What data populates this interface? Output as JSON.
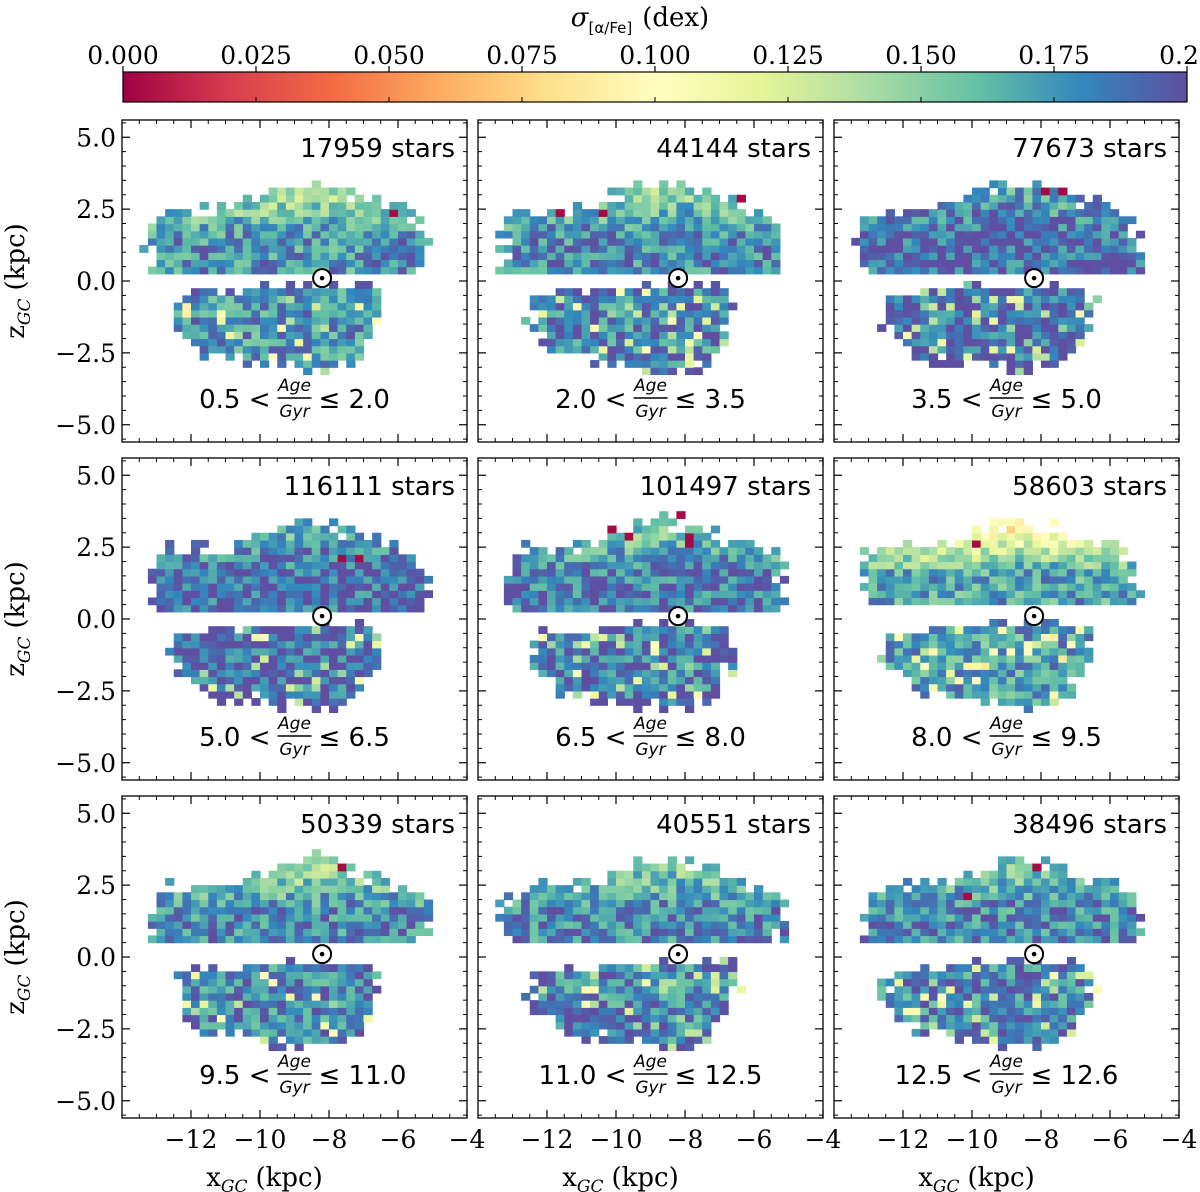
{
  "chart_data": {
    "type": "heatmap",
    "title": "",
    "colorbar": {
      "label_main": "σ",
      "label_sub": "[α/Fe]",
      "label_unit": "(dex)",
      "ticks": [
        "0.000",
        "0.025",
        "0.050",
        "0.075",
        "0.100",
        "0.125",
        "0.150",
        "0.175",
        "0.20"
      ],
      "range": [
        0.0,
        0.2
      ],
      "cmap": "Spectral",
      "placement": "top"
    },
    "x_axis": {
      "label_main": "x",
      "label_sub": "GC",
      "label_unit": "(kpc)",
      "range": [
        -14.0,
        -4.0
      ],
      "major_ticks": [
        -12,
        -10,
        -8,
        -6,
        -4
      ],
      "tick_labels": [
        "−12",
        "−10",
        "−8",
        "−6",
        "−4"
      ]
    },
    "y_axis": {
      "label_main": "z",
      "label_sub": "GC",
      "label_unit": "(kpc)",
      "range": [
        -5.6,
        5.6
      ],
      "major_ticks": [
        5.0,
        2.5,
        0.0,
        -2.5,
        -5.0
      ],
      "tick_labels": [
        "5.0",
        "2.5",
        "0.0",
        "−2.5",
        "−5.0"
      ]
    },
    "sun": {
      "x": -8.2,
      "z": 0.1
    },
    "panels": [
      {
        "stars": "17959 stars",
        "age_lo": "0.5",
        "age_hi": "2.0",
        "mean": 0.175,
        "hot": 0.5,
        "gap": 0.25
      },
      {
        "stars": "44144 stars",
        "age_lo": "2.0",
        "age_hi": "3.5",
        "mean": 0.18,
        "hot": 0.45,
        "gap": 0.25
      },
      {
        "stars": "77673 stars",
        "age_lo": "3.5",
        "age_hi": "5.0",
        "mean": 0.19,
        "hot": 0.3,
        "gap": 0.25
      },
      {
        "stars": "116111 stars",
        "age_lo": "5.0",
        "age_hi": "6.5",
        "mean": 0.19,
        "hot": 0.35,
        "gap": 0.25
      },
      {
        "stars": "101497 stars",
        "age_lo": "6.5",
        "age_hi": "8.0",
        "mean": 0.185,
        "hot": 0.45,
        "gap": 0.25
      },
      {
        "stars": "58603 stars",
        "age_lo": "8.0",
        "age_hi": "9.5",
        "mean": 0.17,
        "hot": 1.0,
        "gap": 0.4
      },
      {
        "stars": "50339 stars",
        "age_lo": "9.5",
        "age_hi": "11.0",
        "mean": 0.18,
        "hot": 0.55,
        "gap": 0.4
      },
      {
        "stars": "40551 stars",
        "age_lo": "11.0",
        "age_hi": "12.5",
        "mean": 0.18,
        "hot": 0.4,
        "gap": 0.4
      },
      {
        "stars": "38496 stars",
        "age_lo": "12.5",
        "age_hi": "12.6",
        "mean": 0.18,
        "hot": 0.35,
        "gap": 0.4
      }
    ],
    "age_word": "Age",
    "gyr_word": "Gyr"
  }
}
